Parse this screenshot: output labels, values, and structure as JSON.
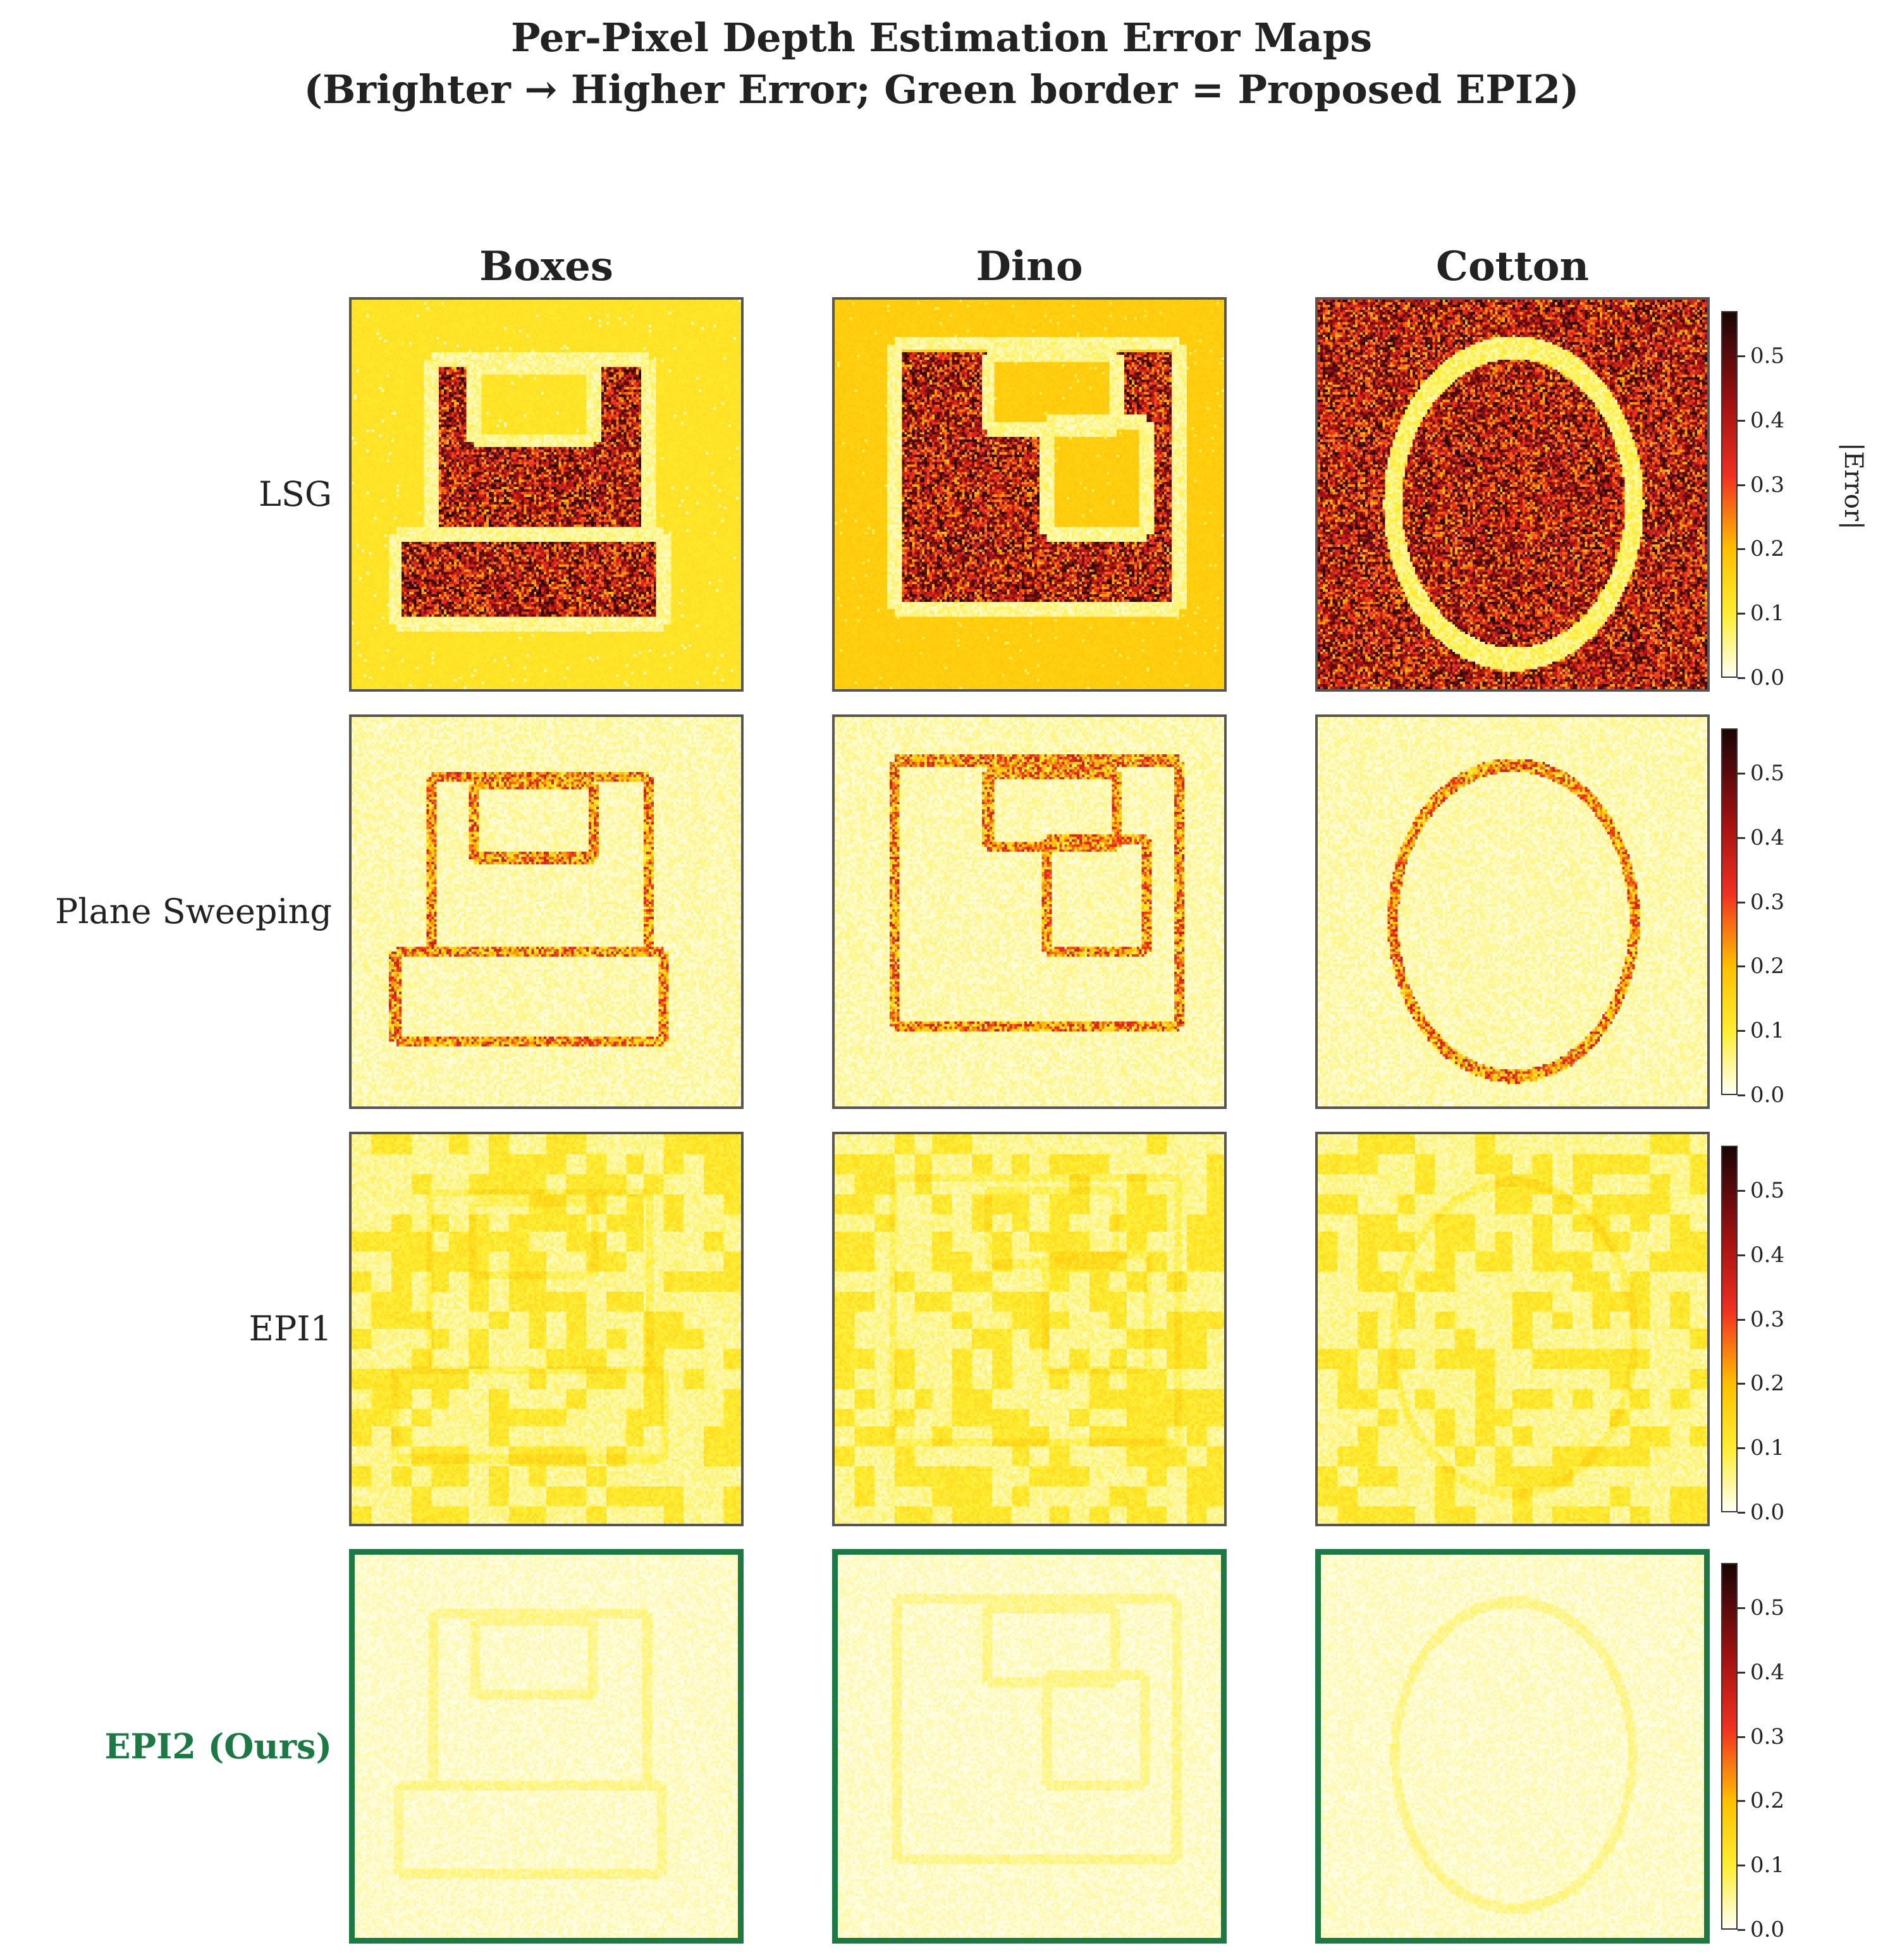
{
  "chart_data": {
    "type": "heatmap",
    "title_lines": [
      "Per-Pixel Depth Estimation Error Maps",
      "(Brighter → Higher Error; Green border = Proposed EPI2)"
    ],
    "columns": [
      "Boxes",
      "Dino",
      "Cotton"
    ],
    "rows": [
      {
        "label": "LSG",
        "highlight": false
      },
      {
        "label": "Plane Sweeping",
        "highlight": false
      },
      {
        "label": "EPI1",
        "highlight": false
      },
      {
        "label": "EPI2 (Ours)",
        "highlight": true
      }
    ],
    "colorbar": {
      "label": "|Error|",
      "range": [
        0.0,
        0.57
      ],
      "ticks": [
        0.0,
        0.1,
        0.2,
        0.3,
        0.4,
        0.5
      ],
      "tick_labels": [
        "0.0",
        "0.1",
        "0.2",
        "0.3",
        "0.4",
        "0.5"
      ],
      "colormap": "YlOrRd-hot"
    },
    "highlight_color": "#1b7a44"
  }
}
